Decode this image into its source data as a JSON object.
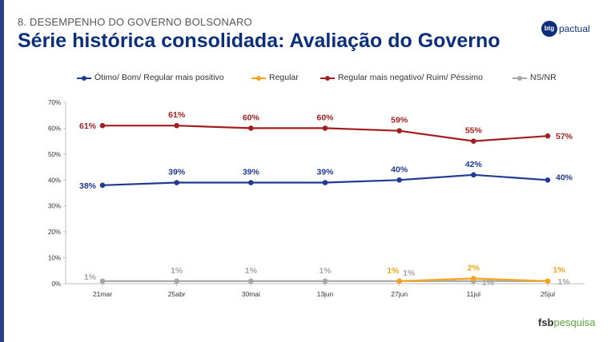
{
  "header": {
    "section": "8. DESEMPENHO DO GOVERNO BOLSONARO",
    "title": "Série histórica consolidada: Avaliação do Governo"
  },
  "brand": {
    "mark": "btg",
    "name": "pactual"
  },
  "footer": {
    "brand_bold": "fsb",
    "brand_light": "pesquisa"
  },
  "chart_data": {
    "type": "line",
    "categories": [
      "21mar",
      "25abr",
      "30mai",
      "13jun",
      "27jun",
      "11jul",
      "25jul"
    ],
    "ylim": [
      0,
      70
    ],
    "yticks": [
      "0%",
      "10%",
      "20%",
      "30%",
      "40%",
      "50%",
      "60%",
      "70%"
    ],
    "grid": false,
    "legend_position": "top",
    "series": [
      {
        "name": "Ótimo/ Bom/ Regular mais positivo",
        "color": "#1f3a93",
        "values": [
          38,
          39,
          39,
          39,
          40,
          42,
          40
        ],
        "labels": [
          "38%",
          "39%",
          "39%",
          "39%",
          "40%",
          "42%",
          "40%"
        ]
      },
      {
        "name": "Regular",
        "color": "#f5a31a",
        "values": [
          null,
          null,
          null,
          null,
          1,
          2,
          1
        ],
        "labels": [
          "",
          "",
          "",
          "",
          "1%",
          "2%",
          "1%"
        ]
      },
      {
        "name": "Regular mais negativo/ Ruim/ Péssimo",
        "color": "#a31f1f",
        "values": [
          61,
          61,
          60,
          60,
          59,
          55,
          57
        ],
        "labels": [
          "61%",
          "61%",
          "60%",
          "60%",
          "59%",
          "55%",
          "57%"
        ]
      },
      {
        "name": "NS/NR",
        "color": "#a6a6a6",
        "values": [
          1,
          1,
          1,
          1,
          1,
          1,
          1
        ],
        "labels": [
          "1%",
          "1%",
          "1%",
          "1%",
          "1%",
          "1%",
          "1%"
        ]
      }
    ]
  }
}
